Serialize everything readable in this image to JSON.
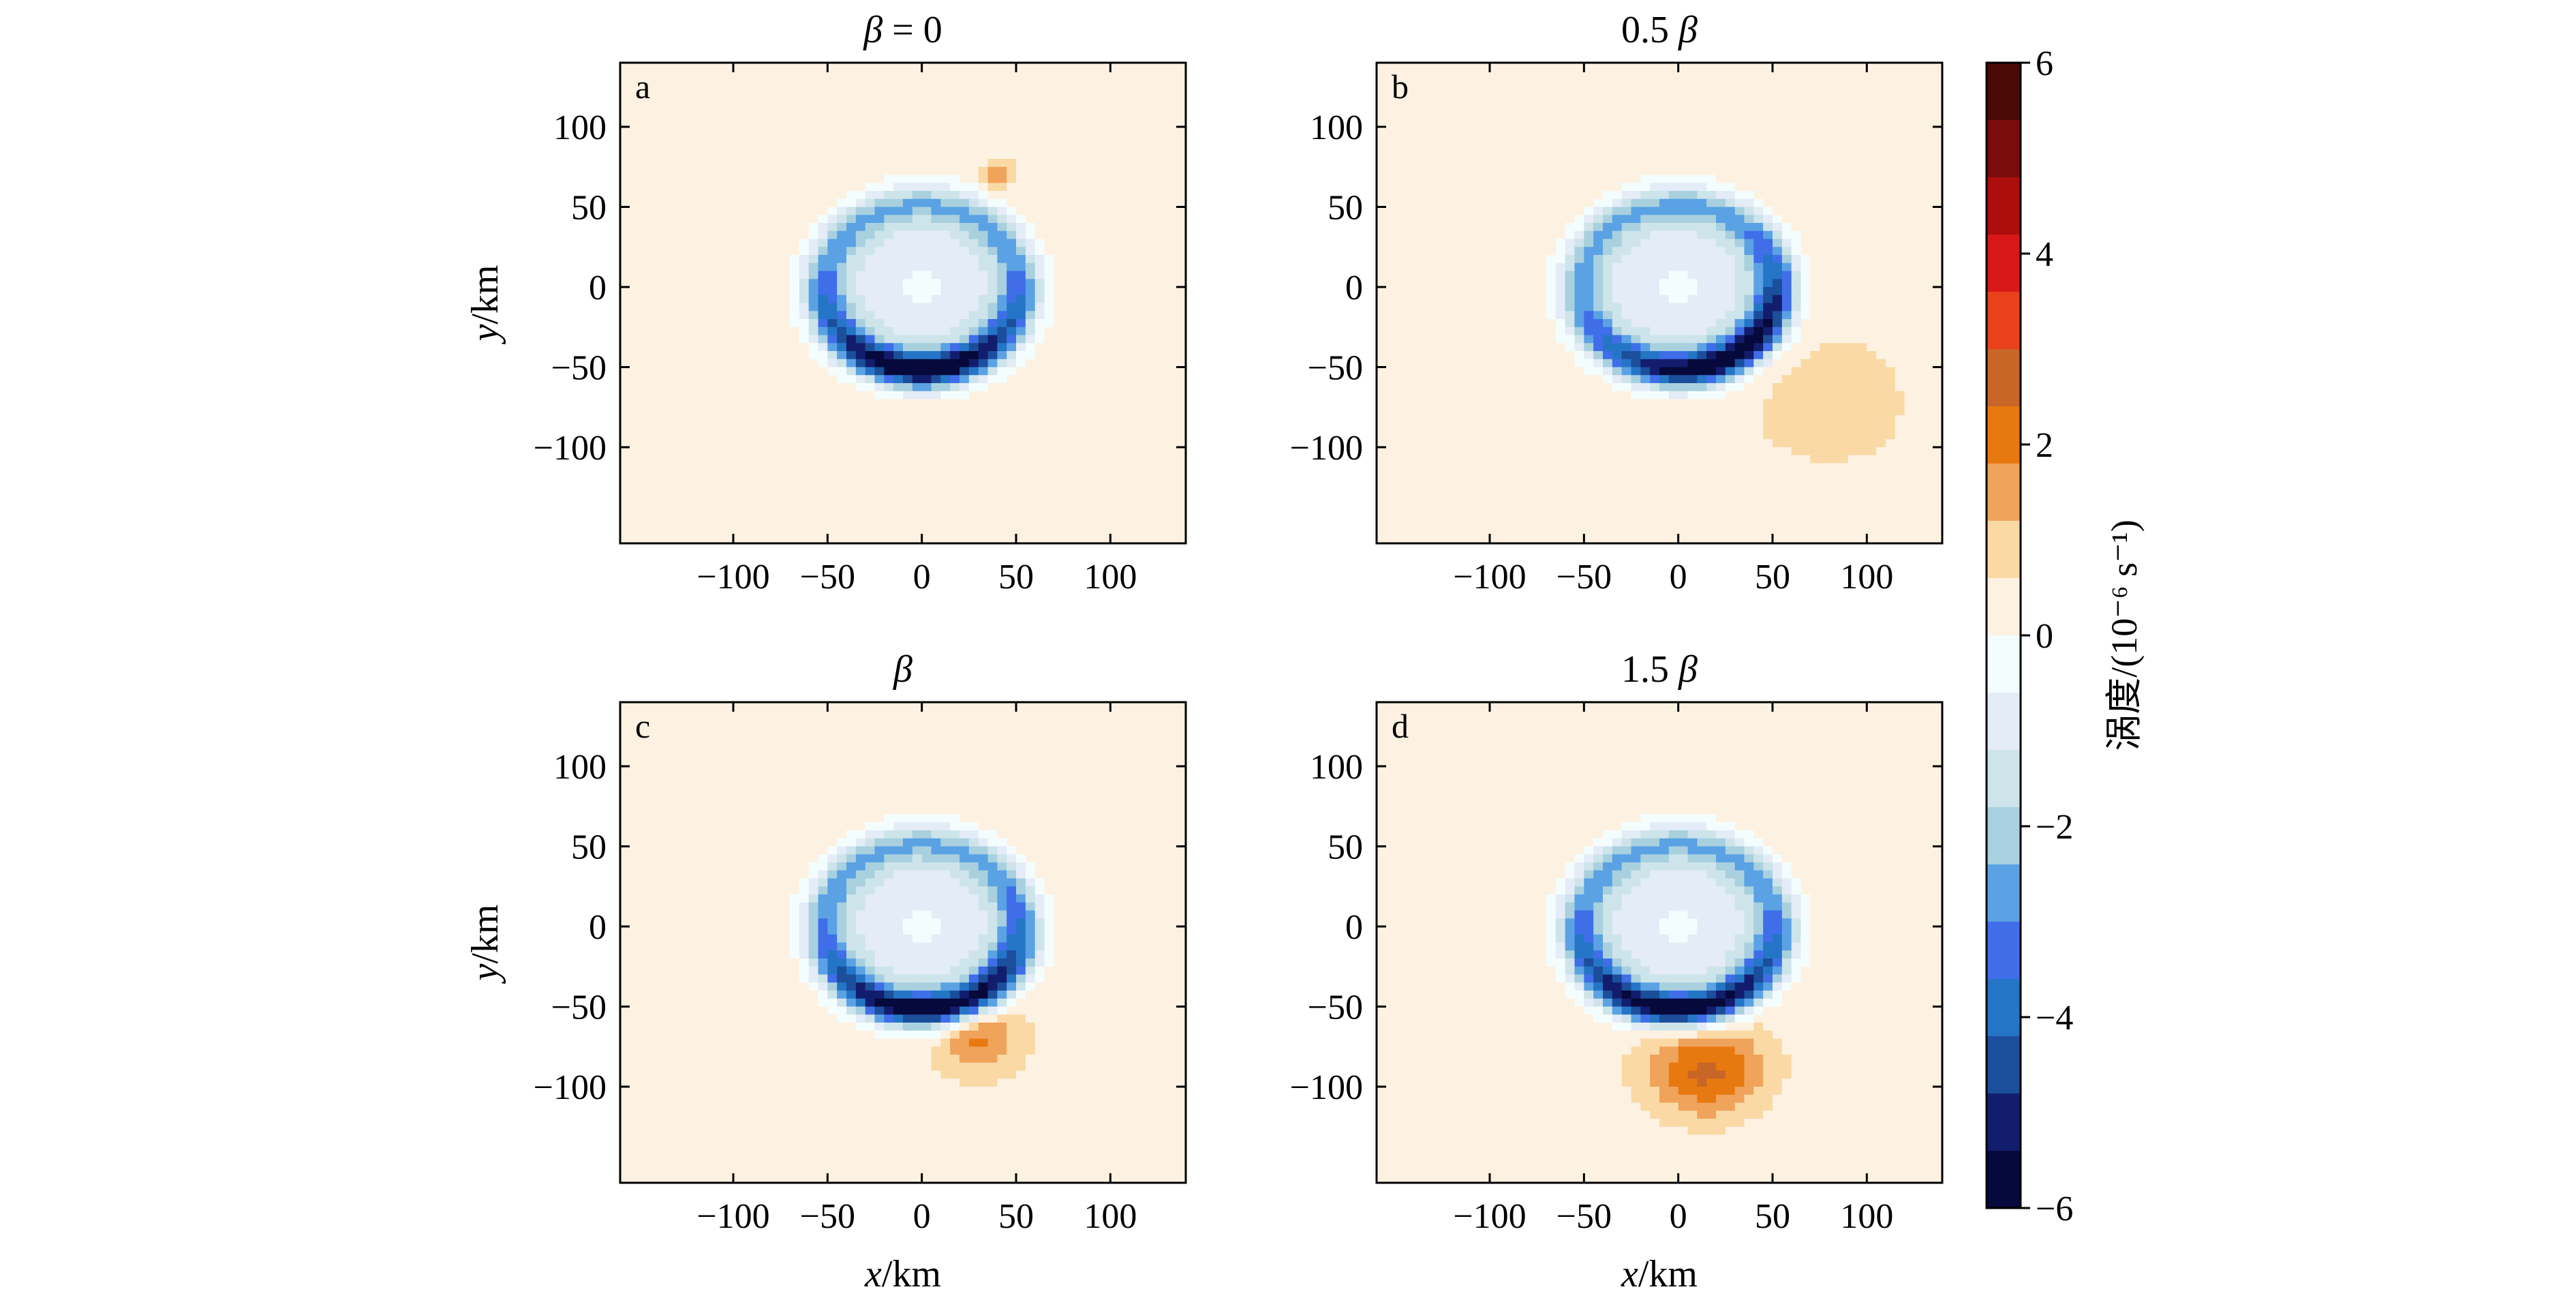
{
  "chart_data": {
    "type": "heatmap",
    "description_kind": "relative vorticity contour maps, 4 panels",
    "xlabel_var": "x",
    "xlabel_unit": "/km",
    "ylabel_var": "y",
    "ylabel_unit": "/km",
    "xlim": [
      -160,
      140
    ],
    "ylim": [
      -160,
      140
    ],
    "x_ticks": [
      -100,
      -50,
      0,
      50,
      100
    ],
    "y_ticks": [
      100,
      50,
      0,
      -50,
      -100
    ],
    "x_tick_labels": [
      "−100",
      "−50",
      "0",
      "50",
      "100"
    ],
    "y_tick_labels": [
      "100",
      "50",
      "0",
      "−50",
      "−100"
    ],
    "panels": [
      {
        "letter": "a",
        "title": "β = 0",
        "beta_factor": 0,
        "ring_radius": 52,
        "ring_peak": -6,
        "ring_peak_angle": 270,
        "ring_width": 11,
        "positive_blobs": [
          {
            "x": 40,
            "y": 70,
            "amp": 1.5,
            "r": 8
          }
        ]
      },
      {
        "letter": "b",
        "title": "0.5 β",
        "beta_factor": 0.5,
        "ring_radius": 52,
        "ring_peak": -6,
        "ring_peak_angle": 300,
        "ring_width": 11,
        "positive_blobs": [
          {
            "x": 90,
            "y": -80,
            "amp": 0.7,
            "r": 45
          }
        ]
      },
      {
        "letter": "c",
        "title": "β",
        "beta_factor": 1,
        "ring_radius": 52,
        "ring_peak": -6,
        "ring_peak_angle": 280,
        "ring_width": 11,
        "positive_blobs": [
          {
            "x": 30,
            "y": -70,
            "amp": 1.6,
            "r": 22
          }
        ]
      },
      {
        "letter": "d",
        "title": "1.5 β",
        "beta_factor": 1.5,
        "ring_radius": 52,
        "ring_peak": -6,
        "ring_peak_angle": 270,
        "ring_width": 11,
        "positive_blobs": [
          {
            "x": 15,
            "y": -90,
            "amp": 2.2,
            "r": 30
          }
        ]
      }
    ],
    "colorbar": {
      "label": "涡度/(10⁻⁶ s⁻¹)",
      "min": -6,
      "max": 6,
      "tick_values": [
        6,
        4,
        2,
        0,
        -2,
        -4,
        -6
      ],
      "tick_labels": [
        "6",
        "4",
        "2",
        "0",
        "−2",
        "−4",
        "−6"
      ],
      "levels_colors": [
        "#4b0a06",
        "#7a0c0c",
        "#ac0d0d",
        "#d81818",
        "#e8411c",
        "#c76627",
        "#e87810",
        "#f0a35b",
        "#fad9a5",
        "#fdf2e2",
        "#f4fdfe",
        "#e4ecf7",
        "#cde4ea",
        "#a8d0df",
        "#5aa2e4",
        "#3f6ee8",
        "#2575c7",
        "#1b4e9b",
        "#131d6e",
        "#06093b"
      ]
    }
  }
}
